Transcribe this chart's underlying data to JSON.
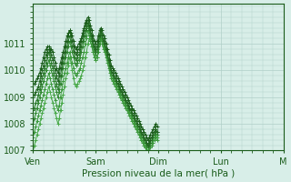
{
  "title": "Pression niveau de la mer( hPa )",
  "bg_color": "#d8eee8",
  "grid_color": "#b0cfc8",
  "line_color_dark": "#1a5c1a",
  "line_color_mid": "#2e8b2e",
  "line_color_light": "#4aaa4a",
  "marker": "+",
  "ylim": [
    1007,
    1012
  ],
  "yticks": [
    1007,
    1008,
    1009,
    1010,
    1011
  ],
  "x_days": [
    "Ven",
    "Sam",
    "Dim",
    "Lun",
    "M"
  ],
  "x_day_positions": [
    0,
    48,
    96,
    144,
    192
  ],
  "num_hours": 192,
  "series": [
    [
      1007.0,
      1007.2,
      1007.4,
      1007.6,
      1007.8,
      1008.0,
      1008.2,
      1008.4,
      1008.6,
      1008.8,
      1009.0,
      1009.2,
      1009.4,
      1009.2,
      1009.0,
      1008.8,
      1008.6,
      1008.4,
      1008.2,
      1008.0,
      1008.2,
      1008.5,
      1008.8,
      1009.1,
      1009.4,
      1009.7,
      1009.9,
      1010.2,
      1010.5,
      1010.3,
      1010.0,
      1009.7,
      1009.5,
      1009.4,
      1009.5,
      1009.6,
      1009.7,
      1009.8,
      1010.0,
      1010.2,
      1010.5,
      1010.7,
      1011.0,
      1011.2,
      1011.1,
      1010.9,
      1010.7,
      1010.5,
      1010.4,
      1010.5,
      1010.7,
      1011.0,
      1011.2,
      1011.1,
      1010.9,
      1010.8,
      1010.6,
      1010.4,
      1010.2,
      1010.0,
      1009.8,
      1009.7,
      1009.6,
      1009.5,
      1009.4,
      1009.3,
      1009.2,
      1009.1,
      1009.0,
      1008.9,
      1008.8,
      1008.7,
      1008.6,
      1008.5,
      1008.4,
      1008.3,
      1008.2,
      1008.1,
      1008.0,
      1007.9,
      1007.8,
      1007.7,
      1007.6,
      1007.5,
      1007.4,
      1007.3,
      1007.2,
      1007.1,
      1007.0,
      1007.1,
      1007.2,
      1007.3,
      1007.4,
      1007.5,
      1007.6,
      1007.5
    ],
    [
      1007.5,
      1007.7,
      1007.9,
      1008.1,
      1008.3,
      1008.5,
      1008.7,
      1008.9,
      1009.1,
      1009.3,
      1009.5,
      1009.7,
      1009.9,
      1009.7,
      1009.5,
      1009.3,
      1009.1,
      1008.9,
      1008.7,
      1008.5,
      1008.7,
      1009.0,
      1009.3,
      1009.6,
      1009.9,
      1010.1,
      1010.3,
      1010.5,
      1010.7,
      1010.5,
      1010.3,
      1010.1,
      1009.9,
      1009.8,
      1009.9,
      1010.0,
      1010.1,
      1010.3,
      1010.5,
      1010.7,
      1011.0,
      1011.2,
      1011.5,
      1011.3,
      1011.1,
      1010.9,
      1010.7,
      1010.5,
      1010.4,
      1010.5,
      1010.7,
      1011.0,
      1011.2,
      1011.0,
      1010.8,
      1010.7,
      1010.5,
      1010.3,
      1010.1,
      1009.9,
      1009.7,
      1009.6,
      1009.5,
      1009.4,
      1009.3,
      1009.2,
      1009.1,
      1009.0,
      1008.9,
      1008.8,
      1008.7,
      1008.6,
      1008.5,
      1008.4,
      1008.3,
      1008.2,
      1008.1,
      1008.0,
      1007.9,
      1007.8,
      1007.7,
      1007.6,
      1007.5,
      1007.4,
      1007.3,
      1007.2,
      1007.1,
      1007.0,
      1006.9,
      1007.0,
      1007.1,
      1007.2,
      1007.3,
      1007.4,
      1007.5,
      1007.4
    ],
    [
      1008.0,
      1008.2,
      1008.4,
      1008.6,
      1008.8,
      1009.0,
      1009.2,
      1009.4,
      1009.6,
      1009.8,
      1010.0,
      1010.2,
      1010.4,
      1010.2,
      1010.0,
      1009.8,
      1009.6,
      1009.4,
      1009.2,
      1009.0,
      1009.2,
      1009.5,
      1009.8,
      1010.1,
      1010.3,
      1010.5,
      1010.7,
      1010.9,
      1011.1,
      1010.9,
      1010.7,
      1010.5,
      1010.3,
      1010.2,
      1010.3,
      1010.4,
      1010.5,
      1010.7,
      1010.9,
      1011.1,
      1011.3,
      1011.5,
      1011.7,
      1011.5,
      1011.3,
      1011.1,
      1010.9,
      1010.7,
      1010.6,
      1010.7,
      1010.9,
      1011.2,
      1011.4,
      1011.2,
      1011.0,
      1010.9,
      1010.7,
      1010.5,
      1010.3,
      1010.1,
      1009.9,
      1009.8,
      1009.7,
      1009.6,
      1009.5,
      1009.4,
      1009.3,
      1009.2,
      1009.1,
      1009.0,
      1008.9,
      1008.8,
      1008.7,
      1008.6,
      1008.5,
      1008.4,
      1008.3,
      1008.2,
      1008.1,
      1008.0,
      1007.9,
      1007.8,
      1007.7,
      1007.6,
      1007.5,
      1007.4,
      1007.3,
      1007.2,
      1007.1,
      1007.2,
      1007.3,
      1007.4,
      1007.5,
      1007.6,
      1007.7,
      1007.6
    ],
    [
      1008.5,
      1008.6,
      1008.8,
      1008.9,
      1009.1,
      1009.3,
      1009.5,
      1009.7,
      1009.9,
      1010.1,
      1010.3,
      1010.5,
      1010.7,
      1010.5,
      1010.3,
      1010.1,
      1009.9,
      1009.7,
      1009.5,
      1009.3,
      1009.5,
      1009.8,
      1010.1,
      1010.3,
      1010.5,
      1010.7,
      1010.9,
      1011.1,
      1011.3,
      1011.1,
      1010.9,
      1010.7,
      1010.5,
      1010.4,
      1010.5,
      1010.6,
      1010.7,
      1010.9,
      1011.1,
      1011.3,
      1011.5,
      1011.6,
      1011.8,
      1011.6,
      1011.4,
      1011.2,
      1011.0,
      1010.8,
      1010.7,
      1010.8,
      1011.0,
      1011.3,
      1011.5,
      1011.3,
      1011.1,
      1011.0,
      1010.8,
      1010.6,
      1010.4,
      1010.2,
      1010.0,
      1009.9,
      1009.8,
      1009.7,
      1009.6,
      1009.5,
      1009.4,
      1009.3,
      1009.2,
      1009.1,
      1009.0,
      1008.9,
      1008.8,
      1008.7,
      1008.6,
      1008.5,
      1008.4,
      1008.3,
      1008.2,
      1008.1,
      1008.0,
      1007.9,
      1007.8,
      1007.7,
      1007.6,
      1007.5,
      1007.4,
      1007.3,
      1007.2,
      1007.3,
      1007.4,
      1007.5,
      1007.6,
      1007.7,
      1007.8,
      1007.7
    ],
    [
      1009.0,
      1009.1,
      1009.2,
      1009.3,
      1009.4,
      1009.6,
      1009.8,
      1010.0,
      1010.2,
      1010.4,
      1010.6,
      1010.7,
      1010.8,
      1010.7,
      1010.6,
      1010.4,
      1010.2,
      1010.0,
      1009.8,
      1009.6,
      1009.8,
      1010.1,
      1010.3,
      1010.5,
      1010.7,
      1010.9,
      1011.1,
      1011.3,
      1011.5,
      1011.3,
      1011.1,
      1010.9,
      1010.7,
      1010.6,
      1010.7,
      1010.8,
      1010.9,
      1011.1,
      1011.3,
      1011.5,
      1011.7,
      1011.8,
      1011.9,
      1011.7,
      1011.5,
      1011.3,
      1011.1,
      1010.9,
      1010.8,
      1010.9,
      1011.1,
      1011.3,
      1011.5,
      1011.3,
      1011.1,
      1011.0,
      1010.8,
      1010.6,
      1010.4,
      1010.2,
      1010.0,
      1009.9,
      1009.8,
      1009.7,
      1009.6,
      1009.5,
      1009.4,
      1009.3,
      1009.2,
      1009.1,
      1009.0,
      1008.9,
      1008.8,
      1008.7,
      1008.6,
      1008.5,
      1008.4,
      1008.3,
      1008.2,
      1008.1,
      1008.0,
      1007.9,
      1007.8,
      1007.7,
      1007.6,
      1007.5,
      1007.4,
      1007.3,
      1007.2,
      1007.3,
      1007.4,
      1007.5,
      1007.6,
      1007.7,
      1007.8,
      1007.7
    ],
    [
      1009.5,
      1009.5,
      1009.6,
      1009.7,
      1009.8,
      1009.9,
      1010.1,
      1010.3,
      1010.5,
      1010.7,
      1010.8,
      1010.9,
      1010.9,
      1010.8,
      1010.8,
      1010.7,
      1010.5,
      1010.3,
      1010.1,
      1009.9,
      1010.1,
      1010.3,
      1010.5,
      1010.7,
      1010.9,
      1011.1,
      1011.3,
      1011.4,
      1011.5,
      1011.4,
      1011.3,
      1011.1,
      1010.9,
      1010.8,
      1010.9,
      1011.0,
      1011.1,
      1011.2,
      1011.4,
      1011.6,
      1011.8,
      1011.9,
      1012.0,
      1011.9,
      1011.7,
      1011.5,
      1011.3,
      1011.1,
      1011.0,
      1011.1,
      1011.3,
      1011.5,
      1011.6,
      1011.5,
      1011.3,
      1011.2,
      1011.0,
      1010.8,
      1010.6,
      1010.4,
      1010.2,
      1010.1,
      1010.0,
      1009.9,
      1009.8,
      1009.7,
      1009.6,
      1009.5,
      1009.4,
      1009.3,
      1009.2,
      1009.1,
      1009.0,
      1008.9,
      1008.8,
      1008.7,
      1008.6,
      1008.5,
      1008.4,
      1008.3,
      1008.2,
      1008.1,
      1008.0,
      1007.9,
      1007.8,
      1007.7,
      1007.6,
      1007.5,
      1007.4,
      1007.5,
      1007.6,
      1007.7,
      1007.8,
      1007.9,
      1008.0,
      1007.9
    ]
  ]
}
